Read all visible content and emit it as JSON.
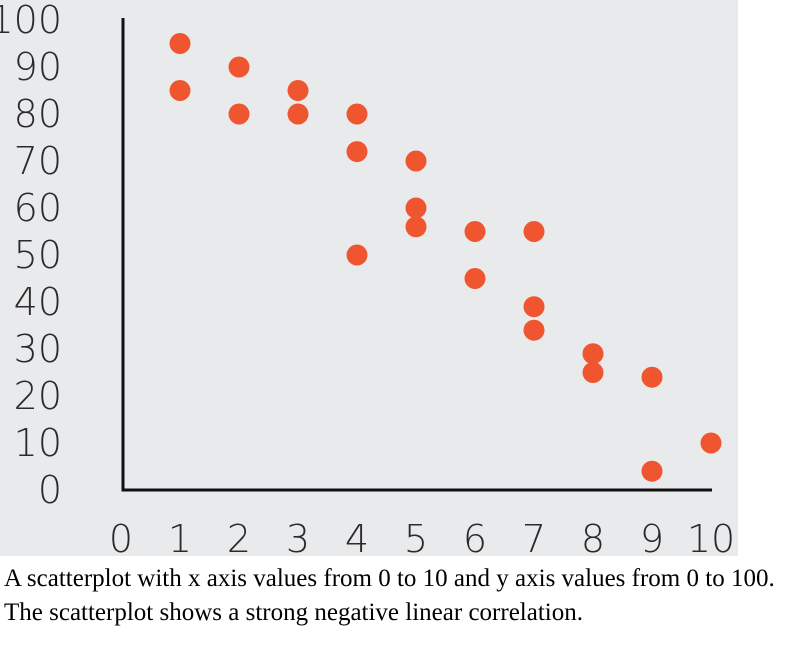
{
  "chart_data": {
    "type": "scatter",
    "xlim": [
      0,
      10
    ],
    "ylim": [
      0,
      100
    ],
    "x_ticks": [
      0,
      1,
      2,
      3,
      4,
      5,
      6,
      7,
      8,
      9,
      10
    ],
    "y_ticks": [
      0,
      10,
      20,
      30,
      40,
      50,
      60,
      70,
      80,
      90,
      100
    ],
    "grid": false,
    "points": [
      {
        "x": 1,
        "y": 95
      },
      {
        "x": 1,
        "y": 85
      },
      {
        "x": 2,
        "y": 90
      },
      {
        "x": 2,
        "y": 80
      },
      {
        "x": 3,
        "y": 85
      },
      {
        "x": 3,
        "y": 80
      },
      {
        "x": 4,
        "y": 80
      },
      {
        "x": 4,
        "y": 72
      },
      {
        "x": 4,
        "y": 50
      },
      {
        "x": 5,
        "y": 70
      },
      {
        "x": 5,
        "y": 60
      },
      {
        "x": 5,
        "y": 56
      },
      {
        "x": 6,
        "y": 55
      },
      {
        "x": 6,
        "y": 45
      },
      {
        "x": 7,
        "y": 55
      },
      {
        "x": 7,
        "y": 39
      },
      {
        "x": 7,
        "y": 34
      },
      {
        "x": 8,
        "y": 29
      },
      {
        "x": 8,
        "y": 25
      },
      {
        "x": 9,
        "y": 24
      },
      {
        "x": 9,
        "y": 4
      },
      {
        "x": 10,
        "y": 10
      }
    ],
    "colors": {
      "point": "#ef5630",
      "axis": "#111111",
      "tick_label": "#2a2a2a",
      "background": "#e9eaec"
    }
  },
  "caption": {
    "text": "A scatterplot with x axis values from 0 to 10 and y axis values from 0 to 100. The scatterplot shows a strong negative linear correlation."
  }
}
